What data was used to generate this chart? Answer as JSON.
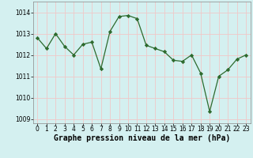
{
  "x": [
    0,
    1,
    2,
    3,
    4,
    5,
    6,
    7,
    8,
    9,
    10,
    11,
    12,
    13,
    14,
    15,
    16,
    17,
    18,
    19,
    20,
    21,
    22,
    23
  ],
  "y": [
    1012.8,
    1012.3,
    1013.0,
    1012.4,
    1012.0,
    1012.5,
    1012.6,
    1011.35,
    1013.1,
    1013.8,
    1013.85,
    1013.7,
    1012.45,
    1012.3,
    1012.15,
    1011.75,
    1011.7,
    1012.0,
    1011.15,
    1009.35,
    1011.0,
    1011.3,
    1011.8,
    1012.0
  ],
  "line_color": "#2d6a2d",
  "marker": "D",
  "marker_size": 2.2,
  "background_color": "#d4f0f0",
  "grid_color": "#f0c8c8",
  "xlabel": "Graphe pression niveau de la mer (hPa)",
  "xlabel_fontsize": 7,
  "tick_fontsize": 5.5,
  "ylim": [
    1008.8,
    1014.5
  ],
  "yticks": [
    1009,
    1010,
    1011,
    1012,
    1013,
    1014
  ],
  "xticks": [
    0,
    1,
    2,
    3,
    4,
    5,
    6,
    7,
    8,
    9,
    10,
    11,
    12,
    13,
    14,
    15,
    16,
    17,
    18,
    19,
    20,
    21,
    22,
    23
  ]
}
